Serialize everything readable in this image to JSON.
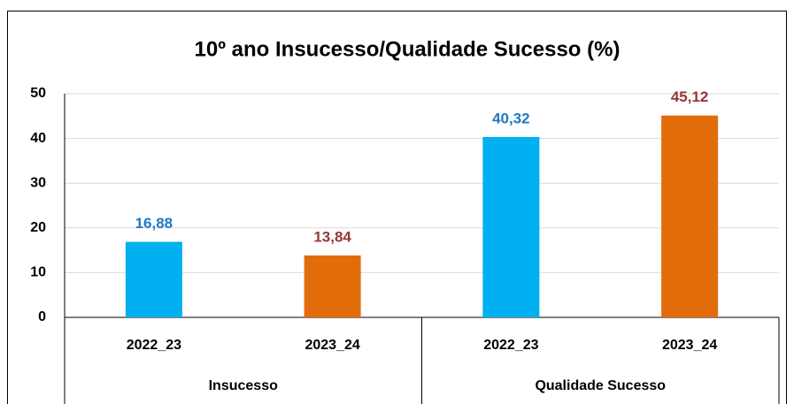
{
  "chart_data": {
    "type": "grouped-category-bar",
    "title": "10º ano Insucesso/Qualidade Sucesso (%)",
    "groups": [
      {
        "label": "Insucesso",
        "categories": [
          "2022_23",
          "2023_24"
        ],
        "values": [
          16.88,
          13.84
        ],
        "value_labels": [
          "16,88",
          "13,84"
        ]
      },
      {
        "label": "Qualidade Sucesso",
        "categories": [
          "2022_23",
          "2023_24"
        ],
        "values": [
          40.32,
          45.12
        ],
        "value_labels": [
          "40,32",
          "45,12"
        ]
      }
    ],
    "colors": [
      "#00b0f0",
      "#e36c0a"
    ],
    "label_colors": [
      "#1f78c1",
      "#953735"
    ],
    "ylim": [
      0,
      50
    ],
    "yticks": [
      0,
      10,
      20,
      30,
      40,
      50
    ],
    "grid": true
  }
}
